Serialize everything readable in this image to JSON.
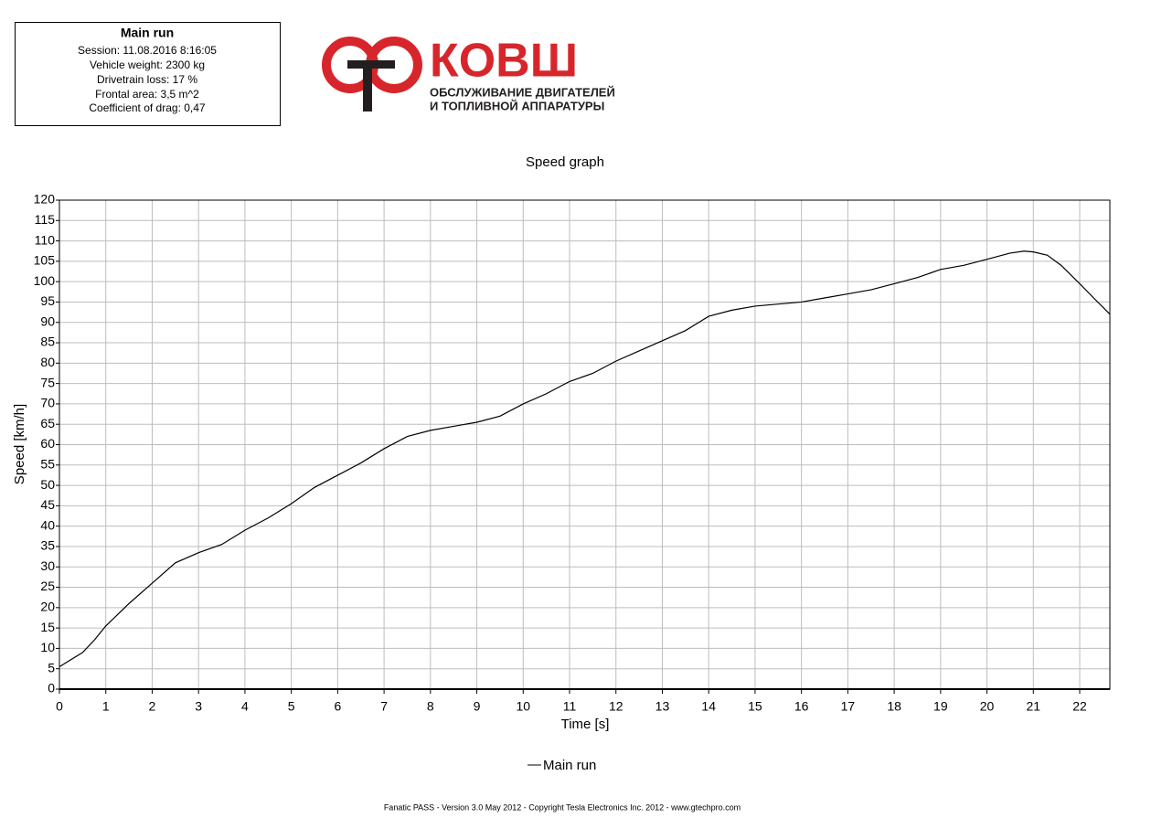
{
  "info_box": {
    "title": "Main run",
    "lines": [
      "Session: 11.08.2016 8:16:05",
      "Vehicle weight: 2300 kg",
      "Drivetrain loss: 17 %",
      "Frontal area: 3,5 m^2",
      "Coefficient of drag: 0,47"
    ]
  },
  "logo": {
    "name": "КОВШ",
    "lines": [
      "ОБСЛУЖИВАНИЕ ДВИГАТЕЛЕЙ",
      "И ТОПЛИВНОЙ АППАРАТУРЫ"
    ]
  },
  "footer": "Fanatic PASS - Version 3.0 May 2012 - Copyright Tesla Electronics Inc. 2012 - www.gtechpro.com",
  "chart_data": {
    "type": "line",
    "title": "Speed graph",
    "x_label": "Time [s]",
    "y_label": "Speed [km/h]",
    "x": [
      0,
      0.5,
      0.75,
      1,
      1.5,
      2,
      2.5,
      3,
      3.5,
      4,
      4.5,
      5,
      5.5,
      6,
      6.5,
      7,
      7.5,
      8,
      8.5,
      9,
      9.5,
      10,
      10.5,
      11,
      11.5,
      12,
      12.5,
      13,
      13.5,
      14,
      14.5,
      15,
      15.5,
      16,
      16.5,
      17,
      17.5,
      18,
      18.5,
      19,
      19.5,
      20,
      20.5,
      20.8,
      21,
      21.3,
      21.6,
      22,
      22.3,
      22.65
    ],
    "series": [
      {
        "name": "Main run",
        "color": "#000000",
        "values": [
          5.5,
          9,
          12,
          15.5,
          21,
          26,
          31,
          33.5,
          35.5,
          39,
          42,
          45.5,
          49.5,
          52.5,
          55.5,
          59,
          62,
          63.5,
          64.5,
          65.5,
          67,
          70,
          72.5,
          75.5,
          77.5,
          80.5,
          83,
          85.5,
          88,
          91.5,
          93,
          94,
          94.5,
          95,
          96,
          97,
          98,
          99.5,
          101,
          103,
          104,
          105.5,
          107,
          107.5,
          107.3,
          106.5,
          104,
          99.5,
          96,
          92
        ]
      }
    ],
    "xlim": [
      0,
      22.65
    ],
    "ylim": [
      0,
      120
    ],
    "xticks": [
      0,
      1,
      2,
      3,
      4,
      5,
      6,
      7,
      8,
      9,
      10,
      11,
      12,
      13,
      14,
      15,
      16,
      17,
      18,
      19,
      20,
      21,
      22
    ],
    "yticks": [
      0,
      5,
      10,
      15,
      20,
      25,
      30,
      35,
      40,
      45,
      50,
      55,
      60,
      65,
      70,
      75,
      80,
      85,
      90,
      95,
      100,
      105,
      110,
      115,
      120
    ],
    "grid": true
  }
}
